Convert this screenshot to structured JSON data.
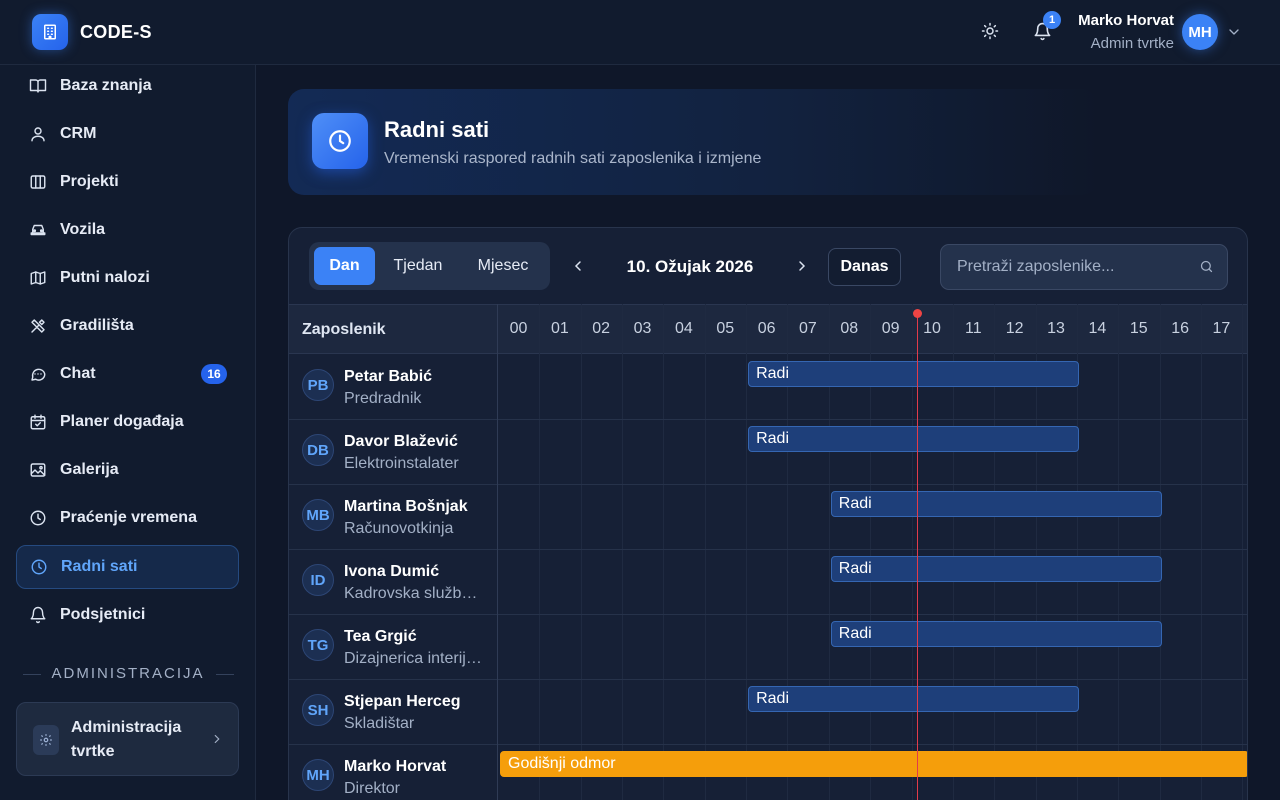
{
  "app": {
    "brand": "CODE-S"
  },
  "topbar": {
    "notifications_count": "1",
    "user_name": "Marko Horvat",
    "user_role": "Admin tvrtke",
    "user_initials": "MH"
  },
  "sidebar": {
    "items": [
      {
        "label": "Baza znanja",
        "icon": "book-icon"
      },
      {
        "label": "CRM",
        "icon": "user-icon"
      },
      {
        "label": "Projekti",
        "icon": "columns-icon"
      },
      {
        "label": "Vozila",
        "icon": "car-icon"
      },
      {
        "label": "Putni nalozi",
        "icon": "map-icon"
      },
      {
        "label": "Gradilišta",
        "icon": "tools-icon"
      },
      {
        "label": "Chat",
        "icon": "chat-icon",
        "badge": "16"
      },
      {
        "label": "Planer događaja",
        "icon": "calendar-icon"
      },
      {
        "label": "Galerija",
        "icon": "image-icon"
      },
      {
        "label": "Praćenje vremena",
        "icon": "clock-icon"
      },
      {
        "label": "Radni sati",
        "icon": "clock-icon",
        "active": true
      },
      {
        "label": "Podsjetnici",
        "icon": "bell-icon"
      }
    ],
    "section_label": "ADMINISTRACIJA",
    "admin_card_label": "Administracija tvrtke"
  },
  "header": {
    "title": "Radni sati",
    "subtitle": "Vremenski raspored radnih sati zaposlenika i izmjene"
  },
  "toolbar": {
    "views": [
      "Dan",
      "Tjedan",
      "Mjesec"
    ],
    "active_view": "Dan",
    "date": "10. Ožujak 2026",
    "today_label": "Danas",
    "search_placeholder": "Pretraži zaposlenike..."
  },
  "grid": {
    "employee_column_label": "Zaposlenik",
    "hours": [
      "00",
      "01",
      "02",
      "03",
      "04",
      "05",
      "06",
      "07",
      "08",
      "09",
      "10",
      "11",
      "12",
      "13",
      "14",
      "15",
      "16",
      "17"
    ],
    "current_time_hours": 10.0,
    "rows": [
      {
        "initials": "PB",
        "name": "Petar Babić",
        "role": "Predradnik",
        "shift": {
          "label": "Radi",
          "start": 6,
          "end": 14,
          "type": "work"
        }
      },
      {
        "initials": "DB",
        "name": "Davor Blažević",
        "role": "Elektroinstalater",
        "shift": {
          "label": "Radi",
          "start": 6,
          "end": 14,
          "type": "work"
        }
      },
      {
        "initials": "MB",
        "name": "Martina Bošnjak",
        "role": "Računovotkinja",
        "shift": {
          "label": "Radi",
          "start": 8,
          "end": 16,
          "type": "work"
        }
      },
      {
        "initials": "ID",
        "name": "Ivona Dumić",
        "role": "Kadrovska službenica",
        "shift": {
          "label": "Radi",
          "start": 8,
          "end": 16,
          "type": "work"
        }
      },
      {
        "initials": "TG",
        "name": "Tea Grgić",
        "role": "Dizajnerica interijera",
        "shift": {
          "label": "Radi",
          "start": 8,
          "end": 16,
          "type": "work"
        }
      },
      {
        "initials": "SH",
        "name": "Stjepan Herceg",
        "role": "Skladištar",
        "shift": {
          "label": "Radi",
          "start": 6,
          "end": 14,
          "type": "work"
        }
      },
      {
        "initials": "MH",
        "name": "Marko Horvat",
        "role": "Direktor",
        "shift": {
          "label": "Godišnji odmor",
          "start": 0,
          "end": 18.2,
          "type": "leave"
        }
      }
    ]
  },
  "colors": {
    "accent": "#3b82f6",
    "leave": "#f59e0b",
    "now_line": "#ef4444"
  }
}
